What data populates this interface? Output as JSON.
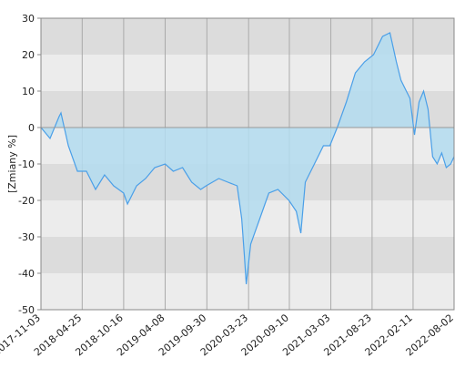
{
  "chart_data": {
    "type": "area",
    "y_label": "[Zmiany %]",
    "x": [
      "2017-11-03",
      "2017-12-11",
      "2018-01-18",
      "2018-01-26",
      "2018-02-26",
      "2018-04-05",
      "2018-05-13",
      "2018-06-20",
      "2018-07-28",
      "2018-09-04",
      "2018-10-16",
      "2018-11-01",
      "2018-12-09",
      "2019-01-16",
      "2019-02-23",
      "2019-04-08",
      "2019-05-12",
      "2019-06-20",
      "2019-07-28",
      "2019-09-04",
      "2019-09-27",
      "2019-11-19",
      "2019-12-27",
      "2020-02-04",
      "2020-02-23",
      "2020-03-05",
      "2020-03-13",
      "2020-04-01",
      "2020-05-09",
      "2020-06-16",
      "2020-07-24",
      "2020-09-08",
      "2020-10-09",
      "2020-10-28",
      "2020-11-16",
      "2020-12-24",
      "2021-01-31",
      "2021-02-27",
      "2021-03-30",
      "2021-05-07",
      "2021-06-14",
      "2021-07-22",
      "2021-08-29",
      "2021-10-06",
      "2021-11-06",
      "2021-12-03",
      "2021-12-22",
      "2022-01-29",
      "2022-02-17",
      "2022-03-08",
      "2022-03-27",
      "2022-04-15",
      "2022-05-04",
      "2022-05-23",
      "2022-06-11",
      "2022-06-30",
      "2022-07-19",
      "2022-08-02"
    ],
    "series": [
      {
        "color": "#4a9fe8",
        "fill": "#b3dcf0",
        "values": [
          0,
          -3,
          3,
          4,
          -5,
          -12,
          -12,
          -17,
          -13,
          -16,
          -18,
          -21,
          -16,
          -14,
          -11,
          -10,
          -12,
          -11,
          -15,
          -17,
          -16,
          -14,
          -15,
          -16,
          -25,
          -35,
          -43,
          -32,
          -25,
          -18,
          -17,
          -20,
          -23,
          -29,
          -15,
          -10,
          -5,
          -5,
          0,
          7,
          15,
          18,
          20,
          25,
          26,
          18,
          13,
          8,
          -2,
          7,
          10,
          5,
          -8,
          -10,
          -7,
          -11,
          -10,
          -8
        ]
      }
    ],
    "xlim": [
      "2017-11-03",
      "2022-08-02"
    ],
    "xticks": [
      "2017-11-03",
      "2018-04-25",
      "2018-10-16",
      "2019-04-08",
      "2019-09-30",
      "2020-03-23",
      "2020-09-10",
      "2021-03-03",
      "2021-08-23",
      "2022-02-11",
      "2022-08-02"
    ],
    "ylim": [
      -50,
      30
    ],
    "yticks": [
      -50,
      -40,
      -30,
      -20,
      -10,
      0,
      10,
      20,
      30
    ],
    "band_colors": [
      "#ececec",
      "#dcdcdc"
    ],
    "grid": true
  }
}
